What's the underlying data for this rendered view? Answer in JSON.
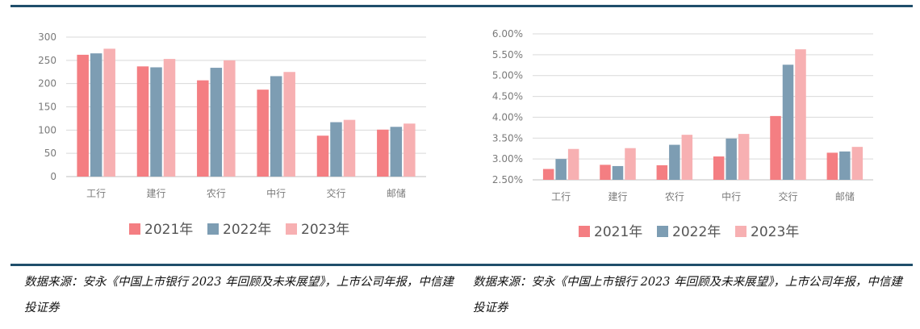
{
  "chart_data": [
    {
      "type": "bar",
      "categories": [
        "工行",
        "建行",
        "农行",
        "中行",
        "交行",
        "邮储"
      ],
      "series": [
        {
          "name": "2021年",
          "values": [
            262,
            237,
            207,
            187,
            88,
            101
          ]
        },
        {
          "name": "2022年",
          "values": [
            265,
            235,
            234,
            216,
            117,
            107
          ]
        },
        {
          "name": "2023年",
          "values": [
            275,
            253,
            250,
            225,
            122,
            114
          ]
        }
      ],
      "ylim": [
        0,
        300
      ],
      "yticks": [
        0,
        50,
        100,
        150,
        200,
        250,
        300
      ],
      "ytick_labels": [
        "0",
        "50",
        "100",
        "150",
        "200",
        "250",
        "300"
      ],
      "grid": true,
      "legend_position": "bottom",
      "colors": [
        "#f47e82",
        "#7d9db3",
        "#f7b0b2"
      ]
    },
    {
      "type": "bar",
      "categories": [
        "工行",
        "建行",
        "农行",
        "中行",
        "交行",
        "邮储"
      ],
      "series": [
        {
          "name": "2021年",
          "values": [
            2.76,
            2.86,
            2.85,
            3.06,
            4.03,
            3.15
          ]
        },
        {
          "name": "2022年",
          "values": [
            3.0,
            2.83,
            3.34,
            3.49,
            5.26,
            3.18
          ]
        },
        {
          "name": "2023年",
          "values": [
            3.24,
            3.26,
            3.58,
            3.6,
            5.63,
            3.29
          ]
        }
      ],
      "ylim": [
        2.5,
        6.0
      ],
      "yticks": [
        2.5,
        3.0,
        3.5,
        4.0,
        4.5,
        5.0,
        5.5,
        6.0
      ],
      "ytick_labels": [
        "2.50%",
        "3.00%",
        "3.50%",
        "4.00%",
        "4.50%",
        "5.00%",
        "5.50%",
        "6.00%"
      ],
      "grid": true,
      "legend_position": "bottom",
      "colors": [
        "#f47e82",
        "#7d9db3",
        "#f7b0b2"
      ]
    }
  ],
  "sources": {
    "left": "数据来源：安永《中国上市银行 2023 年回顾及未来展望》，上市公司年报，中信建投证券",
    "right": "数据来源：安永《中国上市银行 2023 年回顾及未来展望》，上市公司年报，中信建投证券"
  }
}
